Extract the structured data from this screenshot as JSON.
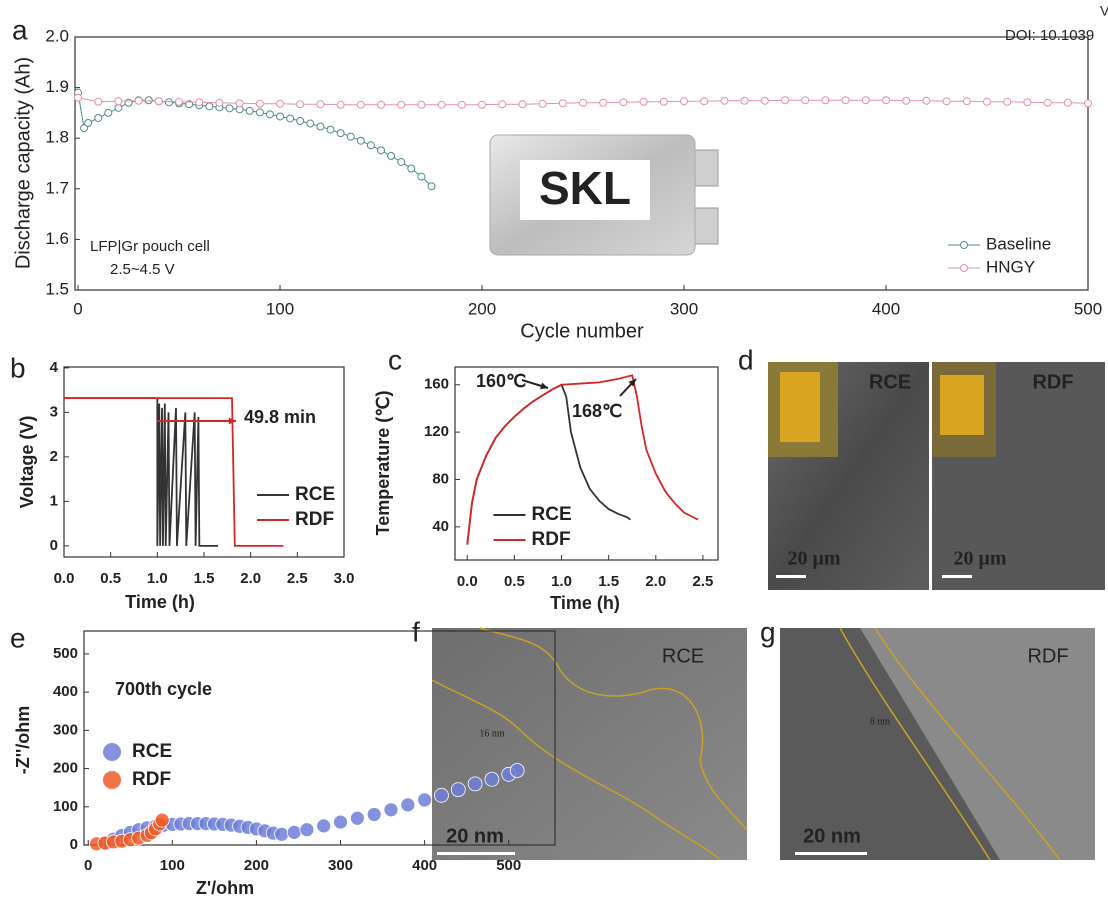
{
  "header": {
    "corner": "V",
    "doi": "DOI: 10.1039"
  },
  "inset": {
    "logo": "SKL"
  },
  "chart_data": [
    {
      "panel_label": "a",
      "type": "line",
      "marker": "open-circle",
      "xlabel": "Cycle number",
      "ylabel": "Discharge capacity (Ah)",
      "xlim": [
        -1.5,
        500
      ],
      "ylim": [
        1.5,
        2.0
      ],
      "xticks": [
        0,
        100,
        200,
        300,
        400,
        500
      ],
      "yticks": [
        1.5,
        1.6,
        1.7,
        1.8,
        1.9,
        {
          "value": 2.0,
          "label": "2.0"
        }
      ],
      "legend": "lower right",
      "annotations": [
        {
          "text": "LFP|Gr pouch cell",
          "color": "#222222"
        },
        {
          "text": "2.5~4.5 V",
          "color": "#222222"
        }
      ],
      "series": [
        {
          "name": "Baseline",
          "color": "#4f8a8b",
          "x": [
            0,
            3,
            5,
            10,
            15,
            20,
            25,
            30,
            35,
            40,
            45,
            50,
            55,
            60,
            65,
            70,
            75,
            80,
            85,
            90,
            95,
            100,
            105,
            110,
            115,
            120,
            125,
            130,
            135,
            140,
            145,
            150,
            155,
            160,
            165,
            170,
            175
          ],
          "values": [
            1.89,
            1.82,
            1.83,
            1.84,
            1.85,
            1.86,
            1.87,
            1.875,
            1.875,
            1.873,
            1.871,
            1.869,
            1.867,
            1.865,
            1.863,
            1.861,
            1.859,
            1.857,
            1.854,
            1.851,
            1.847,
            1.843,
            1.839,
            1.834,
            1.829,
            1.823,
            1.817,
            1.81,
            1.803,
            1.795,
            1.786,
            1.776,
            1.765,
            1.753,
            1.74,
            1.724,
            1.705
          ]
        },
        {
          "name": "HNGY",
          "color": "#e58fa8",
          "x": [
            0,
            10,
            20,
            30,
            40,
            50,
            60,
            70,
            80,
            90,
            100,
            110,
            120,
            130,
            140,
            150,
            160,
            170,
            180,
            190,
            200,
            210,
            220,
            230,
            240,
            250,
            260,
            270,
            280,
            290,
            300,
            310,
            320,
            330,
            340,
            350,
            360,
            370,
            380,
            390,
            400,
            410,
            420,
            430,
            440,
            450,
            460,
            470,
            480,
            490,
            500
          ],
          "values": [
            1.88,
            1.872,
            1.873,
            1.874,
            1.873,
            1.872,
            1.871,
            1.87,
            1.869,
            1.868,
            1.868,
            1.867,
            1.867,
            1.866,
            1.866,
            1.866,
            1.866,
            1.866,
            1.866,
            1.866,
            1.866,
            1.867,
            1.867,
            1.868,
            1.869,
            1.87,
            1.87,
            1.871,
            1.872,
            1.872,
            1.873,
            1.873,
            1.874,
            1.874,
            1.874,
            1.875,
            1.875,
            1.875,
            1.875,
            1.875,
            1.875,
            1.874,
            1.874,
            1.873,
            1.873,
            1.872,
            1.872,
            1.871,
            1.87,
            1.87,
            1.869
          ]
        }
      ]
    },
    {
      "panel_label": "b",
      "type": "line",
      "xlabel": "Time (h)",
      "ylabel": "Voltage (V)",
      "xlim": [
        0,
        3
      ],
      "ylim": [
        -0.25,
        4.02
      ],
      "xticks": [
        {
          "value": 0,
          "label": "0.0"
        },
        0.5,
        {
          "value": 1,
          "label": "1.0"
        },
        1.5,
        {
          "value": 2,
          "label": "2.0"
        },
        2.5,
        {
          "value": 3,
          "label": "3.0"
        }
      ],
      "yticks": [
        0,
        1,
        2,
        3,
        4
      ],
      "legend": "lower right",
      "annotations": [
        {
          "text": "49.8 min",
          "color": "#d62728"
        }
      ],
      "series": [
        {
          "name": "RCE",
          "color": "#333333",
          "x": [
            0,
            1.0,
            1.0,
            1.02,
            1.03,
            1.05,
            1.06,
            1.08,
            1.09,
            1.12,
            1.13,
            1.2,
            1.21,
            1.3,
            1.31,
            1.4,
            1.41,
            1.44,
            1.45,
            1.65
          ],
          "values": [
            3.32,
            3.32,
            0,
            3.2,
            0,
            3.1,
            0,
            3.2,
            0,
            3.0,
            0,
            3.1,
            0,
            3.0,
            0,
            3.0,
            0,
            2.9,
            0,
            0
          ]
        },
        {
          "name": "RDF",
          "color": "#d62728",
          "x": [
            0,
            1.8,
            1.83,
            2.35
          ],
          "values": [
            3.32,
            3.32,
            0,
            0
          ]
        }
      ]
    },
    {
      "panel_label": "c",
      "type": "line",
      "xlabel": "Time (h)",
      "ylabel": "Temperature (℃)",
      "xlim": [
        -0.13,
        2.66
      ],
      "ylim": [
        12,
        175
      ],
      "xticks": [
        {
          "value": 0,
          "label": "0.0"
        },
        0.5,
        {
          "value": 1,
          "label": "1.0"
        },
        1.5,
        {
          "value": 2,
          "label": "2.0"
        },
        2.5
      ],
      "yticks": [
        40,
        80,
        120,
        160
      ],
      "legend": "lower center",
      "annotations": [
        {
          "text": "160℃",
          "color": "#222222"
        },
        {
          "text": "168℃",
          "color": "#222222"
        }
      ],
      "series": [
        {
          "name": "RCE",
          "color": "#333333",
          "x": [
            0,
            0.05,
            0.1,
            0.2,
            0.3,
            0.4,
            0.5,
            0.6,
            0.7,
            0.8,
            0.9,
            1.0,
            1.05,
            1.1,
            1.2,
            1.3,
            1.4,
            1.5,
            1.6,
            1.7,
            1.73
          ],
          "values": [
            25,
            60,
            80,
            100,
            115,
            125,
            133,
            140,
            146,
            151,
            156,
            160,
            150,
            120,
            90,
            72,
            62,
            55,
            51,
            48,
            46
          ]
        },
        {
          "name": "RDF",
          "color": "#d62728",
          "x": [
            0,
            0.05,
            0.1,
            0.2,
            0.3,
            0.4,
            0.5,
            0.6,
            0.7,
            0.8,
            0.9,
            1.0,
            1.2,
            1.4,
            1.6,
            1.75,
            1.8,
            1.85,
            1.9,
            2.0,
            2.1,
            2.2,
            2.3,
            2.4,
            2.45
          ],
          "values": [
            25,
            60,
            80,
            100,
            115,
            125,
            133,
            140,
            146,
            151,
            156,
            160,
            161,
            162,
            165,
            168,
            150,
            125,
            105,
            85,
            70,
            60,
            52,
            48,
            46
          ]
        }
      ]
    },
    {
      "panel_label": "e",
      "type": "scatter",
      "xlabel": "Z'/ohm",
      "ylabel": "-Z''/ohm",
      "xlim": [
        -5,
        555
      ],
      "ylim": [
        0,
        560
      ],
      "xticks": [
        0,
        100,
        200,
        300,
        400,
        500
      ],
      "yticks": [
        0,
        100,
        200,
        300,
        400,
        500
      ],
      "legend": "center left",
      "annotations": [
        {
          "text": "700th cycle",
          "color": "#222222"
        }
      ],
      "series": [
        {
          "name": "RCE",
          "color": "#6f7fd8",
          "x": [
            20,
            30,
            40,
            50,
            60,
            70,
            80,
            90,
            100,
            110,
            120,
            130,
            140,
            150,
            160,
            170,
            180,
            190,
            200,
            210,
            220,
            230,
            245,
            260,
            280,
            300,
            320,
            340,
            360,
            380,
            400,
            420,
            440,
            460,
            480,
            500,
            510
          ],
          "values": [
            5,
            15,
            25,
            33,
            40,
            45,
            49,
            52,
            54,
            55,
            56,
            56,
            56,
            55,
            54,
            52,
            49,
            46,
            42,
            37,
            31,
            28,
            33,
            40,
            50,
            60,
            70,
            80,
            92,
            105,
            118,
            130,
            145,
            160,
            172,
            185,
            195
          ]
        },
        {
          "name": "RDF",
          "color": "#f05a28",
          "x": [
            10,
            20,
            30,
            40,
            50,
            60,
            70,
            75,
            80,
            85,
            88
          ],
          "values": [
            3,
            5,
            8,
            10,
            14,
            18,
            25,
            32,
            42,
            55,
            65
          ]
        }
      ]
    }
  ],
  "images": {
    "d": {
      "panel_label": "d",
      "tiles": [
        {
          "label": "RCE",
          "scale_bar": "20 μm"
        },
        {
          "label": "RDF",
          "scale_bar": "20 μm"
        }
      ]
    },
    "f": {
      "panel_label": "f",
      "label": "RCE",
      "thickness": "16 nm",
      "scale_bar": "20 nm"
    },
    "g": {
      "panel_label": "g",
      "label": "RDF",
      "thickness": "8 nm",
      "scale_bar": "20 nm"
    }
  }
}
